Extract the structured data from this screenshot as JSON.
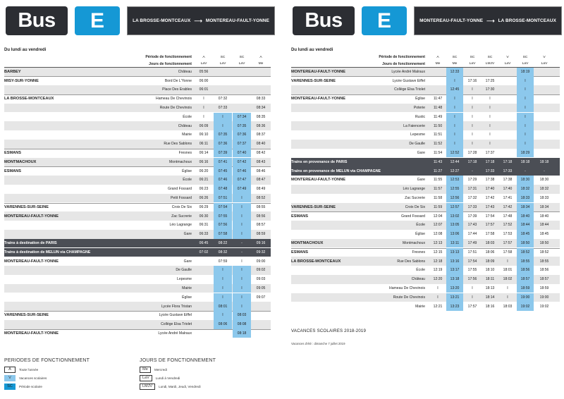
{
  "left": {
    "header": {
      "bus": "Bus",
      "line": "E",
      "from": "LA BROSSE-MONTCEAUX",
      "arrow": "⟶",
      "to": "MONTEREAU-FAULT-YONNE"
    },
    "days": "Du lundi au vendredi",
    "head_labels": [
      "Période de fonctionnement",
      "Jours de fonctionnement"
    ],
    "cols": [
      [
        "A",
        "LaV"
      ],
      [
        "SC",
        "LaV"
      ],
      [
        "SC",
        "LaV"
      ],
      [
        "A",
        "Me"
      ]
    ],
    "hl_cols": [
      1
    ],
    "rows": [
      {
        "c": "BARBEY",
        "s": "Château",
        "t": [
          "05:56",
          "",
          "",
          ""
        ],
        "band": true,
        "hl": []
      },
      {
        "c": "MISY-SUR-YONNE",
        "s": "Bord De L'Yonne",
        "t": [
          "06:00",
          "",
          "",
          ""
        ],
        "sep": true,
        "hl": []
      },
      {
        "c": "",
        "s": "Place Des Erables",
        "t": [
          "06:01",
          "",
          "",
          ""
        ],
        "band": true,
        "hl": []
      },
      {
        "c": "LA BROSSE-MONTCEAUX",
        "s": "Hameau De Chevinois",
        "t": [
          "I",
          "07:32",
          "",
          "08:33"
        ],
        "sep": true
      },
      {
        "c": "",
        "s": "Route De Chevinois",
        "t": [
          "I",
          "07:33",
          "",
          "08:34"
        ],
        "band": true
      },
      {
        "c": "",
        "s": "École",
        "t": [
          "I",
          "I",
          "07:34",
          "08:35"
        ],
        "hl": [
          1,
          2
        ]
      },
      {
        "c": "",
        "s": "Château",
        "t": [
          "06:09",
          "I",
          "07:35",
          "08:36"
        ],
        "band": true,
        "hl": [
          1,
          2
        ]
      },
      {
        "c": "",
        "s": "Mairie",
        "t": [
          "06:10",
          "07:35",
          "07:36",
          "08:37"
        ],
        "hl": [
          1,
          2
        ]
      },
      {
        "c": "",
        "s": "Rue Des Sablons",
        "t": [
          "06:11",
          "07:36",
          "07:37",
          "08:40"
        ],
        "band": true,
        "hl": [
          1,
          2
        ]
      },
      {
        "c": "ESMANS",
        "s": "Fresnes",
        "t": [
          "06:14",
          "07:39",
          "07:40",
          "08:42"
        ],
        "sep": true,
        "hl": [
          1,
          2
        ]
      },
      {
        "c": "MONTMACHOUX",
        "s": "Montmachoux",
        "t": [
          "06:16",
          "07:41",
          "07:42",
          "08:43"
        ],
        "band": true,
        "sep": true,
        "hl": [
          1,
          2
        ]
      },
      {
        "c": "ESMANS",
        "s": "Église",
        "t": [
          "06:20",
          "07:45",
          "07:46",
          "08:46"
        ],
        "sep": true,
        "hl": [
          1,
          2
        ]
      },
      {
        "c": "",
        "s": "École",
        "t": [
          "06:21",
          "07:46",
          "07:47",
          "08:47"
        ],
        "band": true,
        "hl": [
          1,
          2
        ]
      },
      {
        "c": "",
        "s": "Grand Fossard",
        "t": [
          "06:23",
          "07:48",
          "07:49",
          "08:49"
        ],
        "hl": [
          1,
          2
        ]
      },
      {
        "c": "",
        "s": "Petit Fossard",
        "t": [
          "06:26",
          "07:51",
          "I",
          "08:52"
        ],
        "band": true,
        "hl": [
          1,
          2
        ]
      },
      {
        "c": "VARENNES-SUR-SEINE",
        "s": "Croix De Six",
        "t": [
          "06:29",
          "07:54",
          "I",
          "08:55"
        ],
        "sep": true,
        "hl": [
          1,
          2
        ]
      },
      {
        "c": "MONTEREAU-FAULT-YONNE",
        "s": "Zac Sucrerie",
        "t": [
          "06:30",
          "07:55",
          "I",
          "08:56"
        ],
        "band": true,
        "sep": true,
        "hl": [
          1,
          2
        ]
      },
      {
        "c": "",
        "s": "Léo Lagrange",
        "t": [
          "06:31",
          "07:56",
          "I",
          "08:57"
        ],
        "hl": [
          1,
          2
        ]
      },
      {
        "c": "",
        "s": "Gare",
        "t": [
          "06:33",
          "07:58",
          "I",
          "08:59"
        ],
        "band": true,
        "hl": [
          1,
          2
        ]
      },
      {
        "c": "Trains à destination de PARIS",
        "s": "",
        "t": [
          "06:45",
          "08:22",
          "-",
          "09:16"
        ],
        "dark": true
      },
      {
        "c": "Trains à destination de MELUN via CHAMPAGNE",
        "s": "",
        "t": [
          "07:02",
          "08:32",
          "-",
          "09:32"
        ],
        "dark": true
      },
      {
        "c": "MONTEREAU-FAULT-YONNE",
        "s": "Gare",
        "t": [
          "",
          "07:59",
          "I",
          "09:00"
        ]
      },
      {
        "c": "",
        "s": "De Gaulle",
        "t": [
          "",
          "I",
          "I",
          "09:02"
        ],
        "band": true,
        "hl": [
          1,
          2
        ]
      },
      {
        "c": "",
        "s": "Lepesme",
        "t": [
          "",
          "I",
          "I",
          "09:03"
        ],
        "hl": [
          1,
          2
        ]
      },
      {
        "c": "",
        "s": "Mairie",
        "t": [
          "",
          "I",
          "I",
          "09:05"
        ],
        "band": true,
        "hl": [
          1,
          2
        ]
      },
      {
        "c": "",
        "s": "Église",
        "t": [
          "",
          "I",
          "I",
          "09:07"
        ],
        "hl": [
          1,
          2
        ]
      },
      {
        "c": "",
        "s": "Lycée Flora Tristan",
        "t": [
          "",
          "08:01",
          "I",
          ""
        ],
        "band": true,
        "hl": [
          1,
          2
        ]
      },
      {
        "c": "VARENNES-SUR-SEINE",
        "s": "Lycée Gustave Eiffel",
        "t": [
          "",
          "I",
          "08:03",
          ""
        ],
        "sep": true,
        "hl": [
          1,
          2
        ]
      },
      {
        "c": "",
        "s": "Collège Elsa Triolet",
        "t": [
          "",
          "08:06",
          "08:08",
          ""
        ],
        "band": true,
        "hl": [
          1,
          2
        ]
      },
      {
        "c": "MONTEREAU-FAULT-YONNE",
        "s": "Lycée André Malraux",
        "t": [
          "",
          "",
          "08:18",
          ""
        ],
        "sep": true,
        "hl": [
          2
        ]
      }
    ]
  },
  "right": {
    "header": {
      "bus": "Bus",
      "line": "E",
      "from": "MONTEREAU-FAULT-YONNE",
      "arrow": "⟶",
      "to": "LA BROSSE-MONTCEAUX"
    },
    "days": "Du lundi au vendredi",
    "head_labels": [
      "Période de fonctionnement",
      "Jours de fonctionnement"
    ],
    "cols": [
      [
        "A",
        "Me"
      ],
      [
        "SC",
        "Me"
      ],
      [
        "SC",
        "LaV"
      ],
      [
        "SC",
        "LMJV"
      ],
      [
        "V",
        "LaV"
      ],
      [
        "SC",
        "LaV"
      ],
      [
        "V",
        "LaV"
      ]
    ],
    "rows": [
      {
        "c": "MONTEREAU-FAULT-YONNE",
        "s": "Lycée André Malraux",
        "t": [
          "",
          "12:33",
          "",
          "",
          "",
          "18:19",
          ""
        ],
        "band": true,
        "hl": [
          1,
          5
        ]
      },
      {
        "c": "VARENNES-SUR-SEINE",
        "s": "Lycée Gustave Eiffel",
        "t": [
          "",
          "I",
          "17:16",
          "17:25",
          "",
          "I",
          ""
        ],
        "sep": true,
        "hl": [
          1,
          5
        ]
      },
      {
        "c": "",
        "s": "Collège Elsa Triolet",
        "t": [
          "",
          "12:45",
          "I",
          "17:30",
          "",
          "I",
          ""
        ],
        "band": true,
        "hl": [
          1,
          5
        ]
      },
      {
        "c": "MONTEREAU-FAULT-YONNE",
        "s": "Église",
        "t": [
          "11:47",
          "I",
          "I",
          "I",
          "",
          "I",
          ""
        ],
        "sep": true,
        "hl": [
          1,
          5
        ]
      },
      {
        "c": "",
        "s": "Poterie",
        "t": [
          "11:48",
          "I",
          "I",
          "I",
          "",
          "I",
          ""
        ],
        "band": true,
        "hl": [
          1,
          5
        ]
      },
      {
        "c": "",
        "s": "Rustic",
        "t": [
          "11:49",
          "I",
          "I",
          "I",
          "",
          "I",
          ""
        ],
        "hl": [
          1,
          5
        ]
      },
      {
        "c": "",
        "s": "La Faiencerie",
        "t": [
          "11:50",
          "I",
          "I",
          "I",
          "",
          "I",
          ""
        ],
        "band": true,
        "hl": [
          1,
          5
        ]
      },
      {
        "c": "",
        "s": "Lepesme",
        "t": [
          "11:51",
          "I",
          "I",
          "I",
          "",
          "I",
          ""
        ],
        "hl": [
          1,
          5
        ]
      },
      {
        "c": "",
        "s": "De Gaulle",
        "t": [
          "11:52",
          "I",
          "I",
          "I",
          "",
          "I",
          ""
        ],
        "band": true,
        "hl": [
          1,
          5
        ]
      },
      {
        "c": "",
        "s": "Gare",
        "t": [
          "11:54",
          "12:52",
          "17:28",
          "17:37",
          "",
          "18:29",
          ""
        ],
        "hl": [
          1,
          5
        ]
      },
      {
        "c": "Trains en provenance de PARIS",
        "s": "",
        "t": [
          "11:43",
          "12:44",
          "17:18",
          "17:18",
          "17:18",
          "18:18",
          "18:18"
        ],
        "dark": true
      },
      {
        "c": "Trains en provenance de MELUN via CHAMPAGNE",
        "s": "",
        "t": [
          "11:27",
          "12:27",
          "-",
          "17:33",
          "17:33",
          "-",
          "-"
        ],
        "dark": true
      },
      {
        "c": "MONTEREAU-FAULT-YONNE",
        "s": "Gare",
        "t": [
          "11:55",
          "12:53",
          "17:29",
          "17:38",
          "17:38",
          "18:30",
          "18:30"
        ],
        "hl": [
          1,
          5
        ]
      },
      {
        "c": "",
        "s": "Léo Lagrange",
        "t": [
          "11:57",
          "12:55",
          "17:31",
          "17:40",
          "17:40",
          "18:32",
          "18:32"
        ],
        "band": true,
        "hl": [
          1,
          5
        ]
      },
      {
        "c": "",
        "s": "Zac Sucrerie",
        "t": [
          "11:58",
          "12:56",
          "17:32",
          "17:42",
          "17:41",
          "18:33",
          "18:33"
        ],
        "hl": [
          1,
          5
        ]
      },
      {
        "c": "VARENNES-SUR-SEINE",
        "s": "Croix De Six",
        "t": [
          "11:59",
          "12:57",
          "17:33",
          "17:43",
          "17:42",
          "18:34",
          "18:34"
        ],
        "band": true,
        "sep": true,
        "hl": [
          1,
          5
        ]
      },
      {
        "c": "ESMANS",
        "s": "Grand Fossard",
        "t": [
          "12:04",
          "13:02",
          "17:39",
          "17:54",
          "17:48",
          "18:40",
          "18:40"
        ],
        "sep": true,
        "hl": [
          1,
          5
        ]
      },
      {
        "c": "",
        "s": "École",
        "t": [
          "12:07",
          "13:05",
          "17:43",
          "17:57",
          "17:52",
          "18:44",
          "18:44"
        ],
        "band": true,
        "hl": [
          1,
          5
        ]
      },
      {
        "c": "",
        "s": "Église",
        "t": [
          "12:08",
          "13:06",
          "17:44",
          "17:58",
          "17:53",
          "18:45",
          "18:45"
        ],
        "hl": [
          1,
          5
        ]
      },
      {
        "c": "MONTMACHOUX",
        "s": "Montmachoux",
        "t": [
          "12:13",
          "13:11",
          "17:49",
          "18:03",
          "17:57",
          "18:50",
          "18:50"
        ],
        "band": true,
        "sep": true,
        "hl": [
          1,
          5
        ]
      },
      {
        "c": "ESMANS",
        "s": "Fresnes",
        "t": [
          "12:15",
          "13:13",
          "17:51",
          "18:06",
          "17:58",
          "18:52",
          "18:52"
        ],
        "sep": true,
        "hl": [
          1,
          5
        ]
      },
      {
        "c": "LA BROSSE-MONTCEAUX",
        "s": "Rue Des Sablons",
        "t": [
          "12:18",
          "13:16",
          "17:54",
          "18:09",
          "I",
          "18:55",
          "18:55"
        ],
        "band": true,
        "sep": true,
        "hl": [
          1,
          5
        ]
      },
      {
        "c": "",
        "s": "École",
        "t": [
          "12:19",
          "13:17",
          "17:55",
          "18:10",
          "18:01",
          "18:56",
          "18:56"
        ],
        "hl": [
          1,
          5
        ]
      },
      {
        "c": "",
        "s": "Château",
        "t": [
          "12:20",
          "13:18",
          "17:56",
          "18:11",
          "18:02",
          "18:57",
          "18:57"
        ],
        "band": true,
        "hl": [
          1,
          5
        ]
      },
      {
        "c": "",
        "s": "Hameau De Chevinois",
        "t": [
          "I",
          "13:20",
          "I",
          "18:13",
          "I",
          "18:59",
          "18:59"
        ],
        "hl": [
          1,
          5
        ]
      },
      {
        "c": "",
        "s": "Route De Chevinois",
        "t": [
          "I",
          "13:21",
          "I",
          "18:14",
          "I",
          "19:00",
          "19:00"
        ],
        "band": true,
        "hl": [
          1,
          5
        ]
      },
      {
        "c": "",
        "s": "Mairie",
        "t": [
          "12:21",
          "13:23",
          "17:57",
          "18:16",
          "18:03",
          "19:02",
          "19:02"
        ],
        "hl": [
          1,
          5
        ]
      }
    ],
    "vacances_title": "VACANCES SCOLAIRES 2018-2019",
    "vacances_note": "Vacances d'été : dimanche 7 juillet 2019"
  },
  "legend": {
    "periods_title": "PERIODES DE FONCTIONNEMENT",
    "periods": [
      {
        "code": "A",
        "label": "Toute l'année"
      },
      {
        "code": "V",
        "label": "Vacances scolaires"
      },
      {
        "code": "SC",
        "label": "Période scolaire"
      }
    ],
    "days_title": "JOURS DE FONCTIONNEMENT",
    "days": [
      {
        "code": "Me",
        "label": "Mercredi"
      },
      {
        "code": "LaV",
        "label": "Lundi à Vendredi"
      },
      {
        "code": "LMJV",
        "label": "Lundi, Mardi, Jeudi, Vendredi"
      }
    ]
  },
  "colors": {
    "dark": "#2c2e33",
    "accent": "#1598d5",
    "highlight": "#8cc8ec",
    "band": "#e6e6e6",
    "train": "#4b4e55"
  }
}
